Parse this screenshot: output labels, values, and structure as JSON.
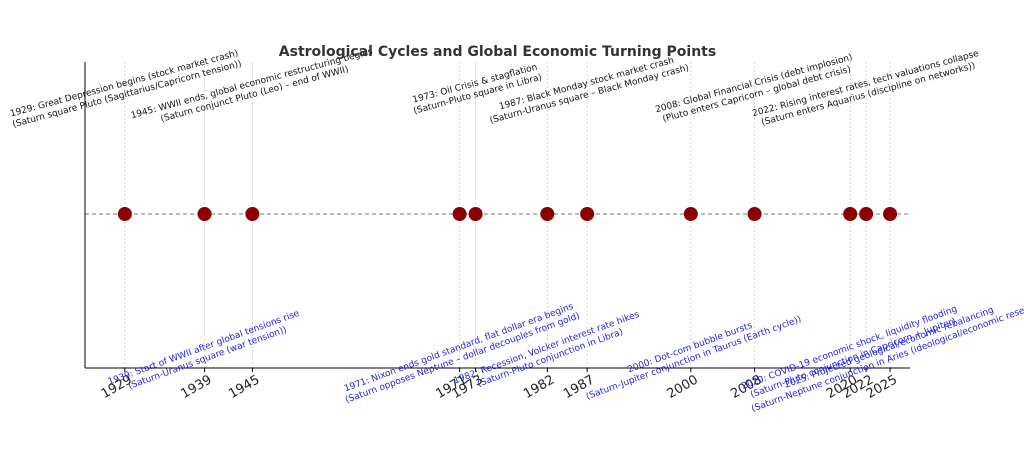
{
  "chart_data": {
    "type": "scatter",
    "title": "Astrological Cycles and Global Economic Turning Points",
    "xlabel": "",
    "ylabel": "",
    "xlim": [
      1924,
      2027.5
    ],
    "grid": "vertical dotted lines at each event year",
    "marker_color": "#8b0000",
    "above_color": "#111111",
    "below_color": "#1f1fdd",
    "events": [
      {
        "year": 1929,
        "tick": "1929",
        "position": "above",
        "line1": "1929: Great Depression begins (stock market crash)",
        "line2": "(Saturn square Pluto (Sagittarius/Capricorn tension))"
      },
      {
        "year": 1939,
        "tick": "1939",
        "position": "below",
        "line1": "1939: Start of WWII after global tensions rise",
        "line2": "(Saturn-Uranus square (war tension))"
      },
      {
        "year": 1945,
        "tick": "1945",
        "position": "above",
        "line1": "1945: WWII ends, global economic restructuring begins",
        "line2": "(Saturn conjunct Pluto (Leo) – end of WWII)"
      },
      {
        "year": 1971,
        "tick": "1971",
        "position": "below",
        "line1": "1971: Nixon ends gold standard, flat dollar era begins",
        "line2": "(Saturn opposes Neptune – dollar decouples from gold)"
      },
      {
        "year": 1973,
        "tick": "1973",
        "position": "above",
        "line1": "1973: Oil Crisis & stagflation",
        "line2": "(Saturn-Pluto square in Libra)"
      },
      {
        "year": 1982,
        "tick": "1982",
        "position": "below",
        "line1": "1982: Recession, Volcker interest rate hikes",
        "line2": "(Saturn-Pluto conjunction in Libra)"
      },
      {
        "year": 1987,
        "tick": "1987",
        "position": "above",
        "line1": "1987: Black Monday stock market crash",
        "line2": "(Saturn-Uranus square – Black Monday crash)"
      },
      {
        "year": 2000,
        "tick": "2000",
        "position": "below",
        "line1": "2000: Dot-com bubble bursts",
        "line2": "(Saturn-Jupiter conjunction in Taurus (Earth cycle))"
      },
      {
        "year": 2008,
        "tick": "2008",
        "position": "above",
        "line1": "2008: Global Financial Crisis (debt implosion)",
        "line2": "(Pluto enters Capricorn – global debt crisis)"
      },
      {
        "year": 2020,
        "tick": "2020",
        "position": "below",
        "line1": "2020: COVID-19 economic shock, liquidity flooding",
        "line2": "(Saturn-Pluto conjunction in Capricorn + Jupiter)"
      },
      {
        "year": 2022,
        "tick": "2022",
        "position": "above",
        "line1": "2022: Rising interest rates, tech valuations collapse",
        "line2": "(Saturn enters Aquarius (discipline on networks))"
      },
      {
        "year": 2025,
        "tick": "2025",
        "position": "below",
        "line1": "2025: Projected geological/economic rebalancing",
        "line2": "(Saturn-Neptune conjunction in Aries (ideological/economic reset))"
      }
    ]
  }
}
